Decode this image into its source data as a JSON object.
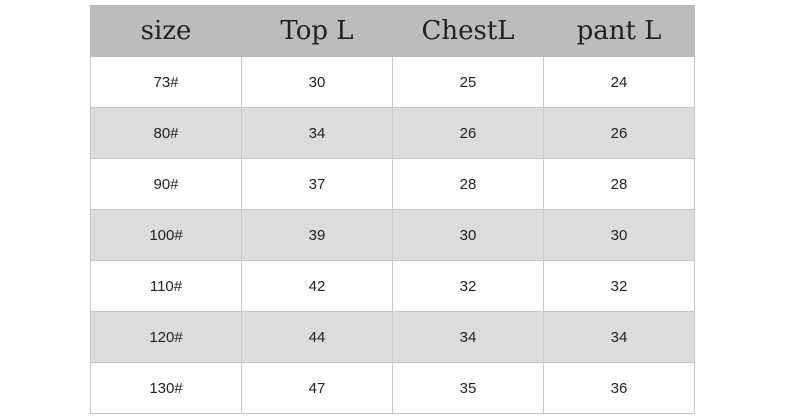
{
  "table": {
    "header": [
      "size",
      "Top L",
      "ChestL",
      "pant L"
    ],
    "rows": [
      [
        "73#",
        30,
        25,
        24
      ],
      [
        "80#",
        34,
        26,
        26
      ],
      [
        "90#",
        37,
        28,
        28
      ],
      [
        "100#",
        39,
        30,
        30
      ],
      [
        "110#",
        42,
        32,
        32
      ],
      [
        "120#",
        44,
        34,
        34
      ],
      [
        "130#",
        47,
        35,
        36
      ]
    ]
  }
}
